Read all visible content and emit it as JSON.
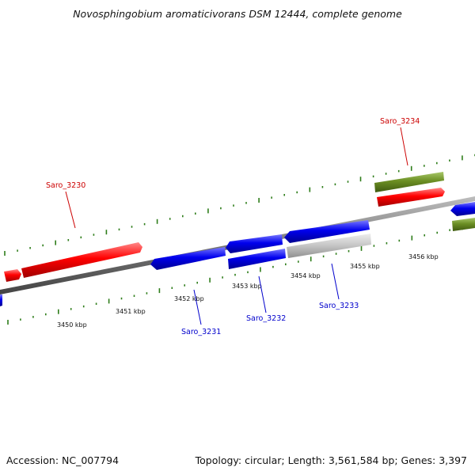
{
  "title": "Novosphingobium aromaticivorans DSM 12444, complete genome",
  "footer": {
    "accession": "Accession: NC_007794",
    "summary": "Topology: circular; Length: 3,561,584 bp; Genes: 3,397"
  },
  "colors": {
    "forward_gene": "#ff0000",
    "reverse_gene": "#0000ee",
    "rna_or_other": "#6b8e23",
    "pseudo_gene": "#c0c0c0",
    "dna_backbone": "#7a7a7a",
    "gc_ticks": "#2e7d1a",
    "label_forward": "#cc0000",
    "label_reverse": "#0000cc"
  },
  "ruler": {
    "unit": "kbp",
    "ticks": [
      "3450 kbp",
      "3451 kbp",
      "3452 kbp",
      "3453 kbp",
      "3454 kbp",
      "3455 kbp",
      "3456 kbp"
    ]
  },
  "gene_labels": [
    {
      "id": "saro-3230",
      "text": "Saro_3230",
      "strand": "forward"
    },
    {
      "id": "saro-3231",
      "text": "Saro_3231",
      "strand": "reverse"
    },
    {
      "id": "saro-3232",
      "text": "Saro_3232",
      "strand": "reverse"
    },
    {
      "id": "saro-3233",
      "text": "Saro_3233",
      "strand": "reverse"
    },
    {
      "id": "saro-3234",
      "text": "Saro_3234",
      "strand": "forward"
    }
  ]
}
